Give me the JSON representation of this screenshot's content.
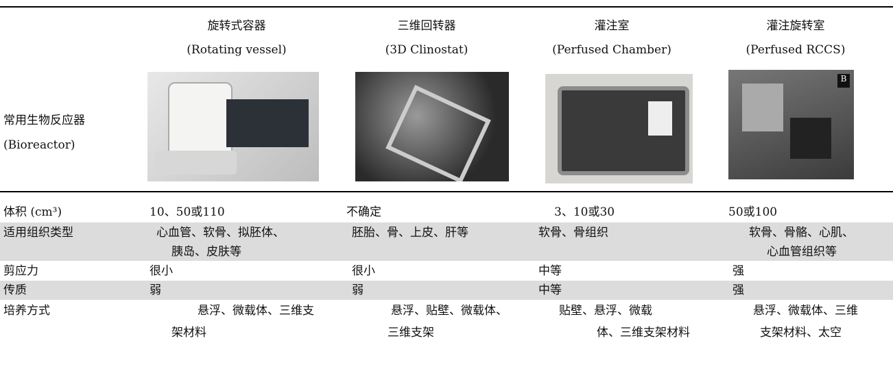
{
  "header": {
    "columns": [
      {
        "title": "旋转式容器",
        "subtitle": "(Rotating vessel)"
      },
      {
        "title": "三维回转器",
        "subtitle": "(3D Clinostat)"
      },
      {
        "title": "灌注室",
        "subtitle": "(Perfused Chamber)"
      },
      {
        "title": "灌注旋转室",
        "subtitle": "(Perfused RCCS)"
      }
    ]
  },
  "bioreactor_row": {
    "label": "常用生物反应器",
    "sublabel": "(Bioreactor)"
  },
  "table": {
    "rows": [
      {
        "label": "体积 (cm³)",
        "cells": [
          [
            "10、50或110"
          ],
          [
            "不确定"
          ],
          [
            "3、10或30"
          ],
          [
            "50或100"
          ]
        ]
      },
      {
        "label": "适用组织类型",
        "cells": [
          [
            "心血管、软骨、拟胚体、",
            "胰岛、皮肤等"
          ],
          [
            "胚胎、骨、上皮、肝等"
          ],
          [
            "软骨、骨组织"
          ],
          [
            "软骨、骨骼、心肌、",
            "心血管组织等"
          ]
        ]
      },
      {
        "label": "剪应力",
        "cells": [
          [
            "很小"
          ],
          [
            "很小"
          ],
          [
            "中等"
          ],
          [
            "强"
          ]
        ]
      },
      {
        "label": "传质",
        "cells": [
          [
            "弱"
          ],
          [
            "弱"
          ],
          [
            "中等"
          ],
          [
            "强"
          ]
        ]
      },
      {
        "label": "培养方式",
        "cells": [
          [
            "悬浮、微载体、三维支",
            "架材料"
          ],
          [
            "悬浮、贴壁、微载体、",
            "三维支架"
          ],
          [
            "贴壁、悬浮、微载",
            "体、三维支架材料"
          ],
          [
            "悬浮、微载体、三维",
            "支架材料、太空"
          ]
        ]
      }
    ]
  }
}
